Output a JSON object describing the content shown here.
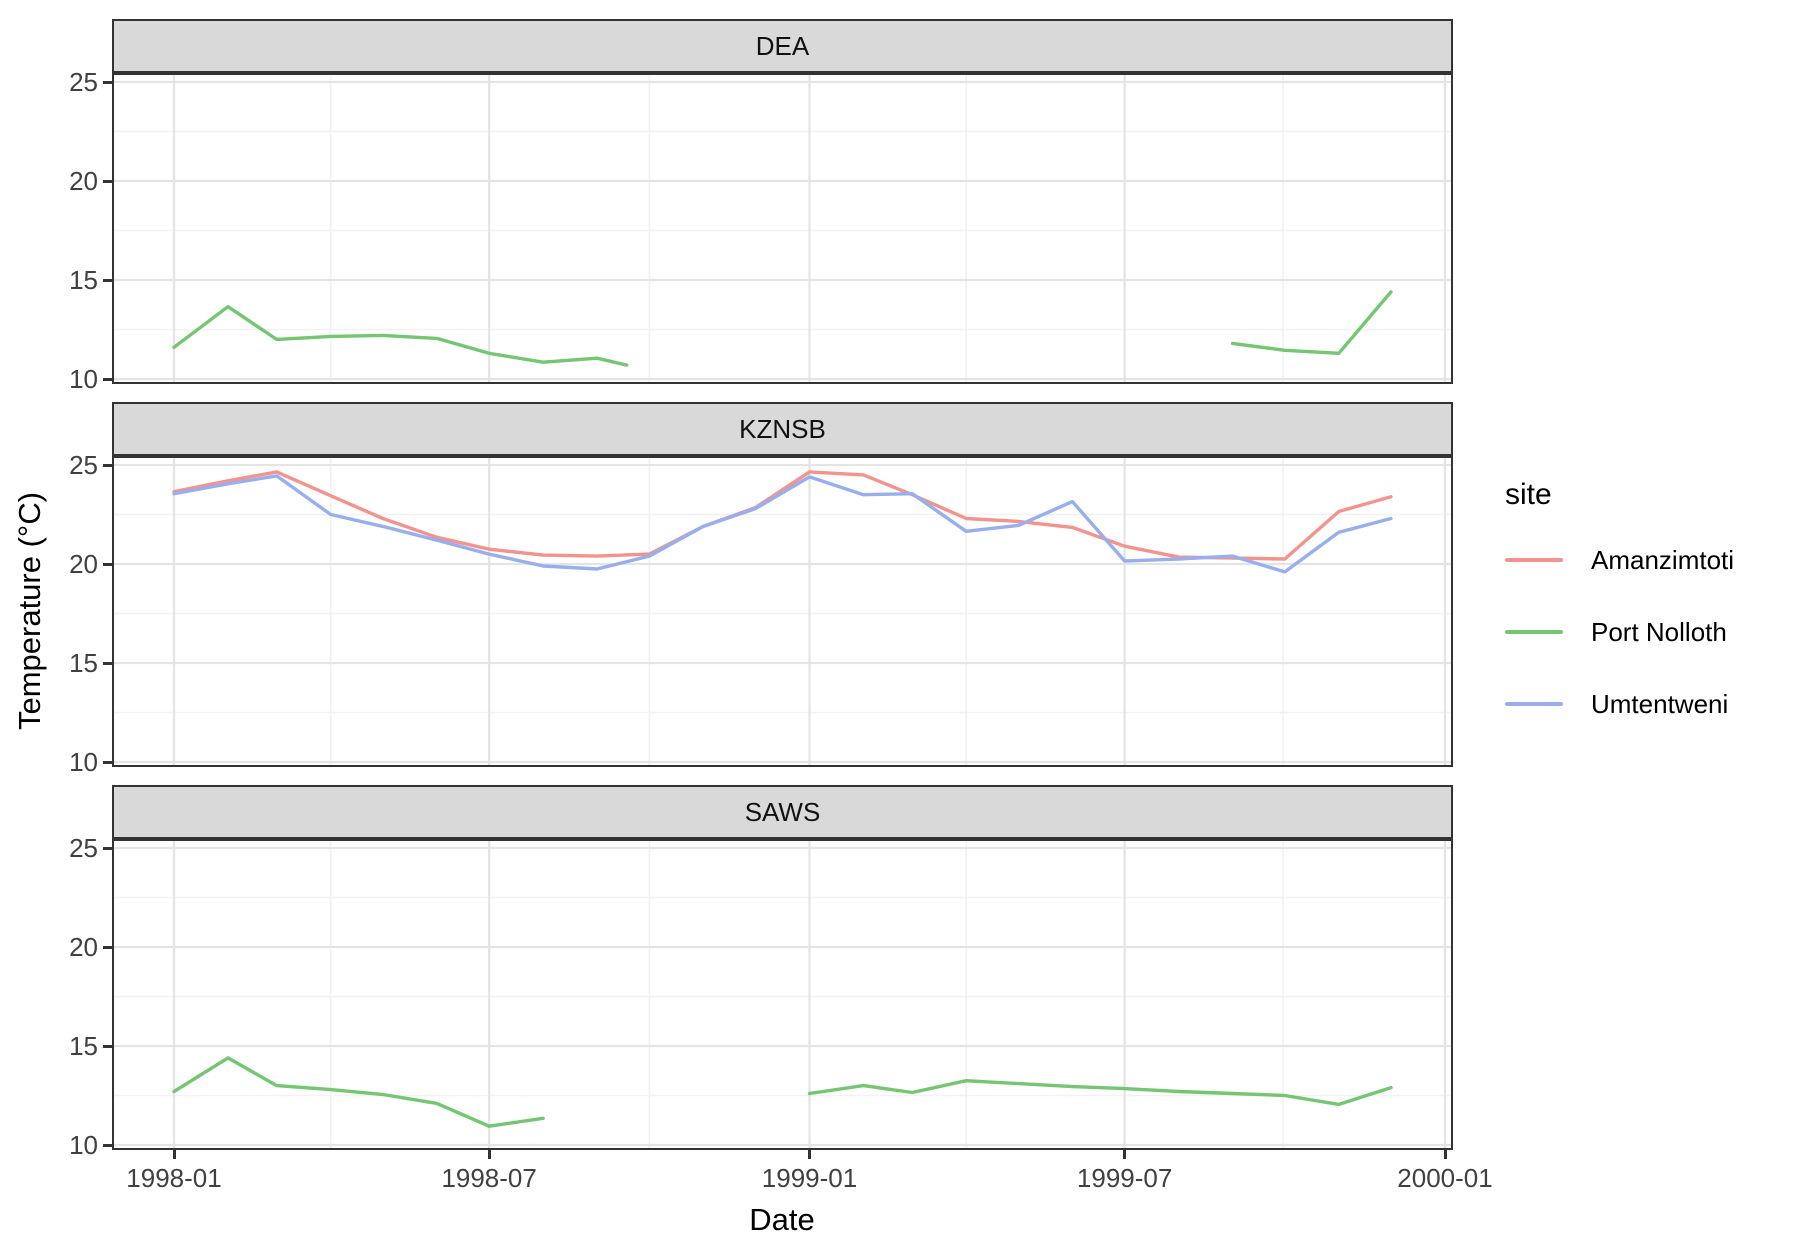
{
  "figure": {
    "xlabel": "Date",
    "ylabel": "Temperature (°C)",
    "x_tick_labels": [
      "1998-01",
      "1998-07",
      "1999-01",
      "1999-07",
      "2000-01"
    ],
    "y_tick_labels": [
      "25",
      "20",
      "15",
      "10"
    ]
  },
  "legend": {
    "title": "site",
    "entries": [
      {
        "label": "Amanzimtoti",
        "color": "#F4938C"
      },
      {
        "label": "Port Nolloth",
        "color": "#74C671"
      },
      {
        "label": "Umtentweni",
        "color": "#97AFEE"
      }
    ]
  },
  "style": {
    "strip_fill": "#D9D9D9",
    "panel_border": "#333333",
    "grid_major": "#E4E4E4",
    "grid_minor": "#F2F2F2"
  },
  "chart_data": {
    "type": "line",
    "title": "",
    "xlabel": "Date",
    "ylabel": "Temperature (°C)",
    "x_unit": "days since 1998-01-01",
    "x_domain_days": [
      -36,
      735
    ],
    "y_domain": [
      9.75,
      25.45
    ],
    "y_major_ticks": [
      25,
      20,
      15,
      10
    ],
    "y_minor_ticks": [
      22.5,
      17.5,
      12.5
    ],
    "x_major_days": [
      0,
      181,
      365,
      546,
      730
    ],
    "x_minor_days": [
      90,
      273,
      455,
      637
    ],
    "x_tick_labels": [
      "1998-01",
      "1998-07",
      "1999-01",
      "1999-07",
      "2000-01"
    ],
    "grid": true,
    "legend_position": "right",
    "facets": [
      {
        "name": "DEA",
        "series": [
          {
            "name": "Port Nolloth",
            "segments": [
              [
                [
                  0,
                  11.6
                ],
                [
                  31,
                  13.65
                ],
                [
                  59,
                  12.0
                ],
                [
                  90,
                  12.15
                ],
                [
                  120,
                  12.2
                ],
                [
                  151,
                  12.05
                ],
                [
                  181,
                  11.3
                ],
                [
                  212,
                  10.85
                ],
                [
                  243,
                  11.05
                ],
                [
                  260,
                  10.7
                ]
              ],
              [
                [
                  608,
                  11.8
                ],
                [
                  638,
                  11.45
                ],
                [
                  669,
                  11.3
                ],
                [
                  699,
                  14.4
                ]
              ]
            ]
          }
        ]
      },
      {
        "name": "KZNSB",
        "series": [
          {
            "name": "Amanzimtoti",
            "segments": [
              [
                [
                  0,
                  23.65
                ],
                [
                  31,
                  24.2
                ],
                [
                  59,
                  24.65
                ],
                [
                  90,
                  23.45
                ],
                [
                  120,
                  22.3
                ],
                [
                  151,
                  21.35
                ],
                [
                  181,
                  20.75
                ],
                [
                  212,
                  20.45
                ],
                [
                  243,
                  20.4
                ],
                [
                  273,
                  20.5
                ],
                [
                  304,
                  21.9
                ],
                [
                  334,
                  22.85
                ],
                [
                  365,
                  24.65
                ],
                [
                  396,
                  24.5
                ],
                [
                  424,
                  23.5
                ],
                [
                  455,
                  22.3
                ],
                [
                  485,
                  22.15
                ],
                [
                  516,
                  21.85
                ],
                [
                  546,
                  20.9
                ],
                [
                  577,
                  20.35
                ],
                [
                  608,
                  20.3
                ],
                [
                  638,
                  20.25
                ],
                [
                  669,
                  22.65
                ],
                [
                  699,
                  23.4
                ]
              ]
            ]
          },
          {
            "name": "Umtentweni",
            "segments": [
              [
                [
                  0,
                  23.55
                ],
                [
                  31,
                  24.05
                ],
                [
                  59,
                  24.45
                ],
                [
                  90,
                  22.5
                ],
                [
                  120,
                  21.9
                ],
                [
                  151,
                  21.2
                ],
                [
                  181,
                  20.5
                ],
                [
                  212,
                  19.9
                ],
                [
                  243,
                  19.75
                ],
                [
                  273,
                  20.4
                ],
                [
                  304,
                  21.9
                ],
                [
                  334,
                  22.8
                ],
                [
                  365,
                  24.4
                ],
                [
                  396,
                  23.5
                ],
                [
                  424,
                  23.55
                ],
                [
                  455,
                  21.65
                ],
                [
                  485,
                  21.95
                ],
                [
                  516,
                  23.15
                ],
                [
                  546,
                  20.15
                ],
                [
                  577,
                  20.25
                ],
                [
                  608,
                  20.4
                ],
                [
                  638,
                  19.6
                ],
                [
                  669,
                  21.6
                ],
                [
                  699,
                  22.3
                ]
              ]
            ]
          }
        ]
      },
      {
        "name": "SAWS",
        "series": [
          {
            "name": "Port Nolloth",
            "segments": [
              [
                [
                  0,
                  12.7
                ],
                [
                  31,
                  14.4
                ],
                [
                  59,
                  13.0
                ],
                [
                  90,
                  12.8
                ],
                [
                  120,
                  12.55
                ],
                [
                  151,
                  12.1
                ],
                [
                  181,
                  10.95
                ],
                [
                  212,
                  11.35
                ]
              ],
              [
                [
                  365,
                  12.6
                ],
                [
                  396,
                  13.0
                ],
                [
                  424,
                  12.65
                ],
                [
                  455,
                  13.25
                ],
                [
                  485,
                  13.1
                ],
                [
                  516,
                  12.95
                ],
                [
                  546,
                  12.85
                ],
                [
                  577,
                  12.7
                ],
                [
                  608,
                  12.6
                ],
                [
                  638,
                  12.5
                ],
                [
                  669,
                  12.05
                ],
                [
                  699,
                  12.9
                ]
              ]
            ]
          }
        ]
      }
    ]
  }
}
